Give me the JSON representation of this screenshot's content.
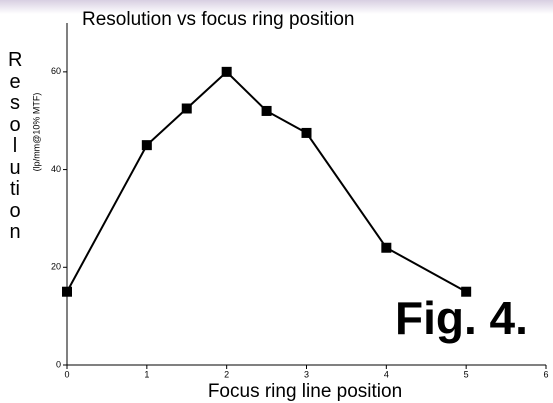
{
  "chart_data": {
    "type": "line",
    "title": "Resolution vs focus ring position",
    "x_label": "Focus ring line position",
    "y_label": "Resolution",
    "y_sublabel": "(lp/mm@10% MTF)",
    "annotation": "Fig. 4.",
    "series": [
      {
        "color": "#000000",
        "x": [
          0,
          1,
          1.5,
          2,
          2.5,
          3,
          4,
          5
        ],
        "values": [
          15,
          45,
          52.5,
          60,
          52,
          47.5,
          24,
          15
        ]
      }
    ],
    "xlim": [
      0,
      6
    ],
    "xticks": [
      0,
      1,
      2,
      3,
      4,
      5,
      6
    ],
    "ylim": [
      0,
      70
    ],
    "yticks": [
      0,
      20,
      40,
      60
    ]
  }
}
